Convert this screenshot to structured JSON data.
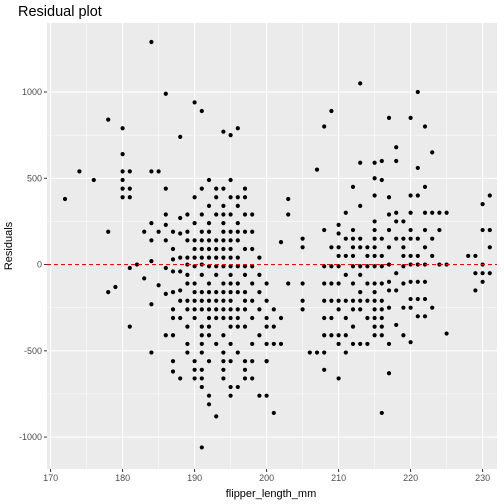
{
  "chart_data": {
    "type": "scatter",
    "title": "Residual plot",
    "xlabel": "flipper_length_mm",
    "ylabel": "Residuals",
    "xlim": [
      169.5,
      232
    ],
    "ylim": [
      -1185,
      1400
    ],
    "x_ticks": [
      170,
      180,
      190,
      200,
      210,
      220,
      230
    ],
    "y_ticks": [
      -1000,
      -500,
      0,
      500,
      1000
    ],
    "grid": true,
    "legend": "none",
    "reference_line": {
      "y": 0,
      "color": "#ff0000",
      "style": "dashed"
    },
    "point_color": "#000000",
    "panel_background": "#ebebeb",
    "grid_color": "#ffffff",
    "points": [
      [
        172,
        380
      ],
      [
        174,
        540
      ],
      [
        176,
        490
      ],
      [
        178,
        840
      ],
      [
        178,
        190
      ],
      [
        178,
        -160
      ],
      [
        179,
        -130
      ],
      [
        180,
        790
      ],
      [
        180,
        640
      ],
      [
        180,
        540
      ],
      [
        180,
        490
      ],
      [
        180,
        440
      ],
      [
        180,
        390
      ],
      [
        181,
        540
      ],
      [
        181,
        440
      ],
      [
        181,
        390
      ],
      [
        181,
        -20
      ],
      [
        181,
        -360
      ],
      [
        182,
        0
      ],
      [
        183,
        190
      ],
      [
        183,
        -80
      ],
      [
        184,
        240
      ],
      [
        184,
        140
      ],
      [
        184,
        20
      ],
      [
        184,
        -230
      ],
      [
        184,
        -510
      ],
      [
        184,
        1290
      ],
      [
        184,
        540
      ],
      [
        185,
        540
      ],
      [
        185,
        190
      ],
      [
        185,
        -120
      ],
      [
        186,
        990
      ],
      [
        186,
        440
      ],
      [
        186,
        290
      ],
      [
        186,
        230
      ],
      [
        186,
        140
      ],
      [
        186,
        -20
      ],
      [
        186,
        -170
      ],
      [
        186,
        -410
      ],
      [
        187,
        190
      ],
      [
        187,
        90
      ],
      [
        187,
        30
      ],
      [
        187,
        -40
      ],
      [
        187,
        -160
      ],
      [
        187,
        -260
      ],
      [
        187,
        -310
      ],
      [
        187,
        -410
      ],
      [
        187,
        -560
      ],
      [
        187,
        -620
      ],
      [
        188,
        740
      ],
      [
        188,
        270
      ],
      [
        188,
        180
      ],
      [
        188,
        40
      ],
      [
        188,
        -40
      ],
      [
        188,
        -150
      ],
      [
        188,
        -210
      ],
      [
        188,
        -310
      ],
      [
        188,
        -660
      ],
      [
        189,
        290
      ],
      [
        189,
        190
      ],
      [
        189,
        140
      ],
      [
        189,
        40
      ],
      [
        189,
        0
      ],
      [
        189,
        -60
      ],
      [
        189,
        -110
      ],
      [
        189,
        -210
      ],
      [
        189,
        -260
      ],
      [
        189,
        -360
      ],
      [
        189,
        -460
      ],
      [
        189,
        -510
      ],
      [
        190,
        940
      ],
      [
        190,
        390
      ],
      [
        190,
        240
      ],
      [
        190,
        140
      ],
      [
        190,
        90
      ],
      [
        190,
        40
      ],
      [
        190,
        -10
      ],
      [
        190,
        -110
      ],
      [
        190,
        -160
      ],
      [
        190,
        -210
      ],
      [
        190,
        -260
      ],
      [
        190,
        -310
      ],
      [
        190,
        -560
      ],
      [
        190,
        -610
      ],
      [
        190,
        -660
      ],
      [
        191,
        890
      ],
      [
        191,
        440
      ],
      [
        191,
        290
      ],
      [
        191,
        190
      ],
      [
        191,
        140
      ],
      [
        191,
        90
      ],
      [
        191,
        40
      ],
      [
        191,
        0
      ],
      [
        191,
        -60
      ],
      [
        191,
        -160
      ],
      [
        191,
        -210
      ],
      [
        191,
        -260
      ],
      [
        191,
        -360
      ],
      [
        191,
        -410
      ],
      [
        191,
        -460
      ],
      [
        191,
        -510
      ],
      [
        191,
        -610
      ],
      [
        191,
        -660
      ],
      [
        191,
        -710
      ],
      [
        191,
        -1060
      ],
      [
        192,
        490
      ],
      [
        192,
        340
      ],
      [
        192,
        240
      ],
      [
        192,
        190
      ],
      [
        192,
        140
      ],
      [
        192,
        90
      ],
      [
        192,
        40
      ],
      [
        192,
        -10
      ],
      [
        192,
        -110
      ],
      [
        192,
        -160
      ],
      [
        192,
        -210
      ],
      [
        192,
        -260
      ],
      [
        192,
        -310
      ],
      [
        192,
        -360
      ],
      [
        192,
        -410
      ],
      [
        192,
        -560
      ],
      [
        192,
        -760
      ],
      [
        192,
        -810
      ],
      [
        193,
        -880
      ],
      [
        193,
        440
      ],
      [
        193,
        390
      ],
      [
        193,
        290
      ],
      [
        193,
        140
      ],
      [
        193,
        90
      ],
      [
        193,
        40
      ],
      [
        193,
        -10
      ],
      [
        193,
        -60
      ],
      [
        193,
        -160
      ],
      [
        193,
        -210
      ],
      [
        193,
        -260
      ],
      [
        193,
        -310
      ],
      [
        193,
        -460
      ],
      [
        194,
        440
      ],
      [
        194,
        340
      ],
      [
        194,
        290
      ],
      [
        194,
        240
      ],
      [
        194,
        190
      ],
      [
        194,
        140
      ],
      [
        194,
        90
      ],
      [
        194,
        40
      ],
      [
        194,
        -10
      ],
      [
        194,
        -110
      ],
      [
        194,
        -160
      ],
      [
        194,
        -210
      ],
      [
        194,
        -260
      ],
      [
        194,
        -310
      ],
      [
        194,
        -410
      ],
      [
        194,
        -510
      ],
      [
        194,
        -560
      ],
      [
        194,
        -610
      ],
      [
        194,
        -660
      ],
      [
        194,
        770
      ],
      [
        195,
        490
      ],
      [
        195,
        390
      ],
      [
        195,
        290
      ],
      [
        195,
        190
      ],
      [
        195,
        140
      ],
      [
        195,
        90
      ],
      [
        195,
        40
      ],
      [
        195,
        -10
      ],
      [
        195,
        -60
      ],
      [
        195,
        -110
      ],
      [
        195,
        -160
      ],
      [
        195,
        -210
      ],
      [
        195,
        -260
      ],
      [
        195,
        -310
      ],
      [
        195,
        -360
      ],
      [
        195,
        -460
      ],
      [
        195,
        -560
      ],
      [
        195,
        -710
      ],
      [
        195,
        -760
      ],
      [
        195,
        750
      ],
      [
        196,
        390
      ],
      [
        196,
        340
      ],
      [
        196,
        240
      ],
      [
        196,
        190
      ],
      [
        196,
        140
      ],
      [
        196,
        40
      ],
      [
        196,
        -10
      ],
      [
        196,
        -110
      ],
      [
        196,
        -160
      ],
      [
        196,
        -260
      ],
      [
        196,
        -310
      ],
      [
        196,
        -360
      ],
      [
        196,
        -510
      ],
      [
        196,
        -710
      ],
      [
        196,
        790
      ],
      [
        197,
        440
      ],
      [
        197,
        390
      ],
      [
        197,
        290
      ],
      [
        197,
        190
      ],
      [
        197,
        90
      ],
      [
        197,
        -10
      ],
      [
        197,
        -60
      ],
      [
        197,
        -160
      ],
      [
        197,
        -210
      ],
      [
        197,
        -260
      ],
      [
        197,
        -360
      ],
      [
        197,
        -560
      ],
      [
        197,
        -610
      ],
      [
        197,
        -660
      ],
      [
        198,
        290
      ],
      [
        198,
        190
      ],
      [
        198,
        90
      ],
      [
        198,
        -10
      ],
      [
        198,
        -110
      ],
      [
        198,
        -210
      ],
      [
        198,
        -310
      ],
      [
        198,
        -460
      ],
      [
        198,
        -560
      ],
      [
        198,
        -660
      ],
      [
        199,
        40
      ],
      [
        199,
        -60
      ],
      [
        199,
        -160
      ],
      [
        199,
        -260
      ],
      [
        199,
        -410
      ],
      [
        199,
        -760
      ],
      [
        200,
        -110
      ],
      [
        200,
        -210
      ],
      [
        200,
        -310
      ],
      [
        200,
        -360
      ],
      [
        200,
        -460
      ],
      [
        200,
        -560
      ],
      [
        200,
        -560
      ],
      [
        200,
        -760
      ],
      [
        201,
        -260
      ],
      [
        201,
        -360
      ],
      [
        201,
        -460
      ],
      [
        201,
        -860
      ],
      [
        202,
        130
      ],
      [
        202,
        -310
      ],
      [
        202,
        -460
      ],
      [
        203,
        290
      ],
      [
        203,
        380
      ],
      [
        203,
        -110
      ],
      [
        205,
        150
      ],
      [
        205,
        100
      ],
      [
        205,
        -110
      ],
      [
        205,
        -210
      ],
      [
        205,
        -260
      ],
      [
        206,
        -510
      ],
      [
        207,
        -510
      ],
      [
        207,
        550
      ],
      [
        208,
        200
      ],
      [
        208,
        -10
      ],
      [
        208,
        -110
      ],
      [
        208,
        -210
      ],
      [
        208,
        -310
      ],
      [
        208,
        -410
      ],
      [
        208,
        -510
      ],
      [
        208,
        -610
      ],
      [
        208,
        800
      ],
      [
        209,
        100
      ],
      [
        209,
        -10
      ],
      [
        209,
        -110
      ],
      [
        209,
        -210
      ],
      [
        209,
        -310
      ],
      [
        209,
        -410
      ],
      [
        209,
        890
      ],
      [
        210,
        230
      ],
      [
        210,
        180
      ],
      [
        210,
        100
      ],
      [
        210,
        50
      ],
      [
        210,
        -10
      ],
      [
        210,
        -110
      ],
      [
        210,
        -210
      ],
      [
        210,
        -260
      ],
      [
        210,
        -410
      ],
      [
        210,
        -460
      ],
      [
        210,
        -660
      ],
      [
        211,
        300
      ],
      [
        211,
        150
      ],
      [
        211,
        50
      ],
      [
        211,
        -60
      ],
      [
        211,
        -210
      ],
      [
        211,
        -310
      ],
      [
        211,
        -410
      ],
      [
        211,
        -510
      ],
      [
        212,
        450
      ],
      [
        212,
        200
      ],
      [
        212,
        150
      ],
      [
        212,
        100
      ],
      [
        212,
        50
      ],
      [
        212,
        -10
      ],
      [
        212,
        -110
      ],
      [
        212,
        -210
      ],
      [
        212,
        -260
      ],
      [
        212,
        -360
      ],
      [
        212,
        -460
      ],
      [
        213,
        1050
      ],
      [
        213,
        590
      ],
      [
        213,
        340
      ],
      [
        213,
        150
      ],
      [
        213,
        100
      ],
      [
        213,
        -10
      ],
      [
        213,
        -60
      ],
      [
        213,
        -160
      ],
      [
        213,
        -210
      ],
      [
        213,
        -260
      ],
      [
        213,
        -460
      ],
      [
        214,
        100
      ],
      [
        214,
        50
      ],
      [
        214,
        -10
      ],
      [
        214,
        -110
      ],
      [
        214,
        -210
      ],
      [
        214,
        -310
      ],
      [
        214,
        -460
      ],
      [
        215,
        590
      ],
      [
        215,
        500
      ],
      [
        215,
        400
      ],
      [
        215,
        250
      ],
      [
        215,
        200
      ],
      [
        215,
        150
      ],
      [
        215,
        100
      ],
      [
        215,
        50
      ],
      [
        215,
        -10
      ],
      [
        215,
        -110
      ],
      [
        215,
        -160
      ],
      [
        215,
        -210
      ],
      [
        215,
        -260
      ],
      [
        215,
        -310
      ],
      [
        215,
        -360
      ],
      [
        215,
        -410
      ],
      [
        216,
        -860
      ],
      [
        216,
        600
      ],
      [
        216,
        490
      ],
      [
        216,
        150
      ],
      [
        216,
        50
      ],
      [
        216,
        -10
      ],
      [
        216,
        -110
      ],
      [
        216,
        -210
      ],
      [
        216,
        -260
      ],
      [
        216,
        -310
      ],
      [
        216,
        -360
      ],
      [
        216,
        -410
      ],
      [
        217,
        850
      ],
      [
        217,
        390
      ],
      [
        217,
        290
      ],
      [
        217,
        200
      ],
      [
        217,
        100
      ],
      [
        217,
        0
      ],
      [
        217,
        -100
      ],
      [
        217,
        -150
      ],
      [
        217,
        -250
      ],
      [
        217,
        -460
      ],
      [
        217,
        -630
      ],
      [
        218,
        680
      ],
      [
        218,
        600
      ],
      [
        218,
        300
      ],
      [
        218,
        250
      ],
      [
        218,
        150
      ],
      [
        218,
        -50
      ],
      [
        218,
        -150
      ],
      [
        218,
        -350
      ],
      [
        219,
        250
      ],
      [
        219,
        150
      ],
      [
        219,
        100
      ],
      [
        219,
        50
      ],
      [
        219,
        -10
      ],
      [
        219,
        -110
      ],
      [
        219,
        -250
      ],
      [
        219,
        -410
      ],
      [
        220,
        850
      ],
      [
        220,
        400
      ],
      [
        220,
        300
      ],
      [
        220,
        200
      ],
      [
        220,
        150
      ],
      [
        220,
        50
      ],
      [
        220,
        0
      ],
      [
        220,
        -100
      ],
      [
        220,
        -200
      ],
      [
        220,
        -250
      ],
      [
        220,
        -450
      ],
      [
        221,
        1000
      ],
      [
        221,
        560
      ],
      [
        221,
        400
      ],
      [
        221,
        150
      ],
      [
        221,
        50
      ],
      [
        221,
        0
      ],
      [
        221,
        -100
      ],
      [
        221,
        -200
      ],
      [
        221,
        -300
      ],
      [
        222,
        800
      ],
      [
        222,
        450
      ],
      [
        222,
        300
      ],
      [
        222,
        200
      ],
      [
        222,
        100
      ],
      [
        222,
        0
      ],
      [
        222,
        -100
      ],
      [
        222,
        -200
      ],
      [
        222,
        -300
      ],
      [
        223,
        650
      ],
      [
        223,
        300
      ],
      [
        223,
        150
      ],
      [
        223,
        50
      ],
      [
        223,
        -250
      ],
      [
        224,
        300
      ],
      [
        224,
        200
      ],
      [
        224,
        0
      ],
      [
        225,
        300
      ],
      [
        225,
        0
      ],
      [
        225,
        -400
      ],
      [
        228,
        50
      ],
      [
        229,
        -150
      ],
      [
        229,
        -50
      ],
      [
        229,
        50
      ],
      [
        230,
        350
      ],
      [
        230,
        200
      ],
      [
        230,
        0
      ],
      [
        230,
        -50
      ],
      [
        230,
        -100
      ],
      [
        231,
        400
      ],
      [
        231,
        200
      ],
      [
        231,
        100
      ],
      [
        231,
        -50
      ]
    ]
  }
}
